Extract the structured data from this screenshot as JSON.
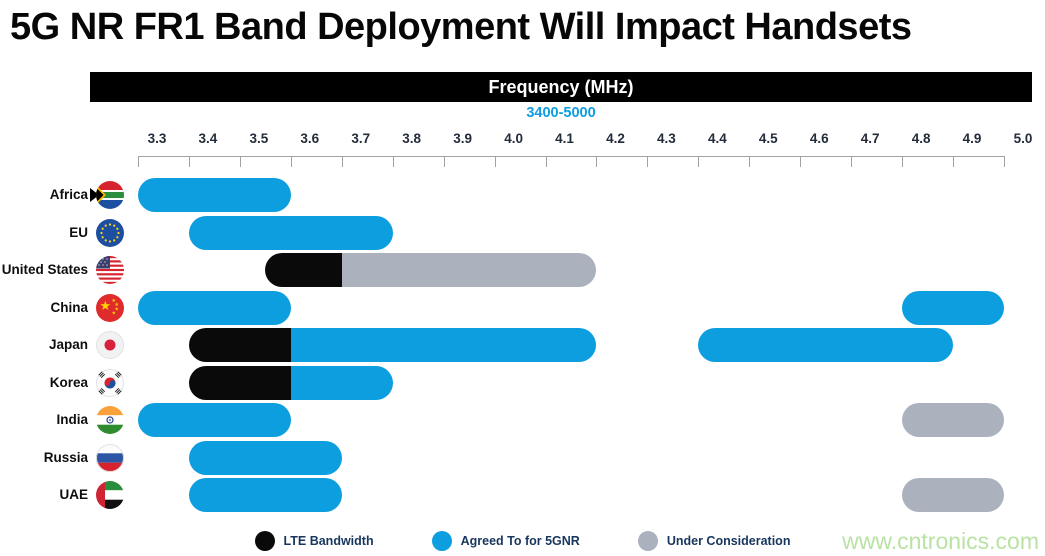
{
  "page": {
    "title": "5G NR FR1 Band Deployment Will Impact Handsets",
    "watermark": "www.cntronics.com"
  },
  "chart_data": {
    "type": "bar",
    "variant": "horizontal-range-bars",
    "title": "Frequency (MHz)",
    "subtitle": "3400-5000",
    "axis": {
      "min": 3.3,
      "max": 5.0,
      "step": 0.1,
      "tick_labels": [
        "3.3",
        "3.4",
        "3.5",
        "3.6",
        "3.7",
        "3.8",
        "3.9",
        "4.0",
        "4.1",
        "4.2",
        "4.3",
        "4.4",
        "4.5",
        "4.6",
        "4.7",
        "4.8",
        "4.9",
        "5.0"
      ],
      "grid": false
    },
    "rows": [
      {
        "label": "Africa",
        "flag": "south-africa",
        "bars": [
          {
            "category": "agreed",
            "from": 3.3,
            "to": 3.6
          }
        ]
      },
      {
        "label": "EU",
        "flag": "european-union",
        "bars": [
          {
            "category": "agreed",
            "from": 3.4,
            "to": 3.8
          }
        ]
      },
      {
        "label": "United States",
        "flag": "united-states",
        "bars": [
          {
            "category": "lte",
            "from": 3.55,
            "to": 3.7
          },
          {
            "category": "consideration",
            "from": 3.7,
            "to": 4.2
          }
        ]
      },
      {
        "label": "China",
        "flag": "china",
        "bars": [
          {
            "category": "agreed",
            "from": 3.3,
            "to": 3.6
          },
          {
            "category": "agreed",
            "from": 4.8,
            "to": 5.0
          }
        ]
      },
      {
        "label": "Japan",
        "flag": "japan",
        "bars": [
          {
            "category": "lte",
            "from": 3.4,
            "to": 3.6
          },
          {
            "category": "agreed",
            "from": 3.6,
            "to": 4.2
          },
          {
            "category": "agreed",
            "from": 4.4,
            "to": 4.9
          }
        ]
      },
      {
        "label": "Korea",
        "flag": "south-korea",
        "bars": [
          {
            "category": "lte",
            "from": 3.4,
            "to": 3.6
          },
          {
            "category": "agreed",
            "from": 3.6,
            "to": 3.8
          }
        ]
      },
      {
        "label": "India",
        "flag": "india",
        "bars": [
          {
            "category": "agreed",
            "from": 3.3,
            "to": 3.6
          },
          {
            "category": "consideration",
            "from": 4.8,
            "to": 5.0
          }
        ]
      },
      {
        "label": "Russia",
        "flag": "russia",
        "bars": [
          {
            "category": "agreed",
            "from": 3.4,
            "to": 3.7
          }
        ]
      },
      {
        "label": "UAE",
        "flag": "uae",
        "bars": [
          {
            "category": "agreed",
            "from": 3.4,
            "to": 3.7
          },
          {
            "category": "consideration",
            "from": 4.8,
            "to": 5.0
          }
        ]
      }
    ],
    "legend": [
      {
        "id": "lte",
        "label": "LTE Bandwidth",
        "color": "#0a0a0a"
      },
      {
        "id": "agreed",
        "label": "Agreed To for 5GNR",
        "color": "#0d9ee0"
      },
      {
        "id": "consideration",
        "label": "Under Consideration",
        "color": "#abb1bd"
      }
    ],
    "legend_position": "bottom",
    "colors": {
      "header_bar": "#000000",
      "subtitle": "#0d9ee0",
      "watermark": "#b9e2a4"
    }
  }
}
